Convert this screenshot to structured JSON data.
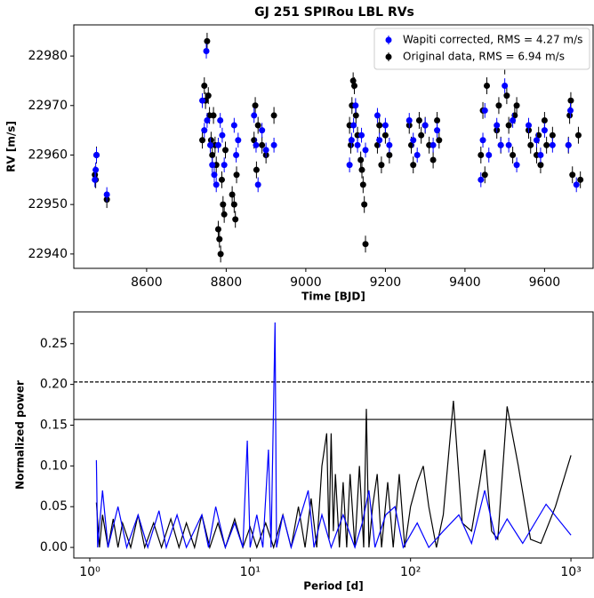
{
  "chart_data": [
    {
      "type": "scatter",
      "title": "GJ 251 SPIRou LBL RVs",
      "xlabel": "Time [BJD]",
      "ylabel": "RV [m/s]",
      "xlim": [
        8417,
        9722
      ],
      "ylim": [
        22937.1,
        22986.3
      ],
      "xticks": [
        8600,
        8800,
        9000,
        9200,
        9400,
        9600
      ],
      "yticks": [
        22940,
        22950,
        22960,
        22970,
        22980
      ],
      "legend": "upper right",
      "series": [
        {
          "name": "Wapiti corrected, RMS = 4.27 m/s",
          "color": "#0000ff",
          "yerr": 1.5,
          "x": [
            8470,
            8472,
            8474,
            8500,
            8740,
            8745,
            8750,
            8752,
            8760,
            8765,
            8770,
            8775,
            8780,
            8785,
            8790,
            8795,
            8820,
            8825,
            8830,
            8870,
            8875,
            8880,
            8890,
            8900,
            8920,
            9110,
            9115,
            9120,
            9125,
            9130,
            9140,
            9150,
            9180,
            9185,
            9200,
            9210,
            9260,
            9270,
            9280,
            9300,
            9320,
            9330,
            9440,
            9445,
            9450,
            9460,
            9480,
            9490,
            9500,
            9510,
            9520,
            9530,
            9560,
            9580,
            9590,
            9600,
            9620,
            9660,
            9665,
            9680
          ],
          "values": [
            22955,
            22957,
            22960,
            22952,
            22971,
            22965,
            22981,
            22967,
            22962,
            22958,
            22956,
            22954,
            22962,
            22967,
            22964,
            22958,
            22966,
            22960,
            22963,
            22968,
            22962,
            22954,
            22965,
            22961,
            22962,
            22958,
            22963,
            22966,
            22970,
            22962,
            22964,
            22961,
            22968,
            22963,
            22966,
            22962,
            22967,
            22963,
            22960,
            22966,
            22962,
            22965,
            22955,
            22963,
            22969,
            22960,
            22966,
            22962,
            22974,
            22962,
            22967,
            22958,
            22966,
            22963,
            22960,
            22965,
            22962,
            22962,
            22969,
            22954
          ]
        },
        {
          "name": "Original data, RMS = 6.94 m/s",
          "color": "#000000",
          "yerr": 1.7,
          "x": [
            8470,
            8472,
            8474,
            8500,
            8740,
            8745,
            8748,
            8752,
            8755,
            8758,
            8762,
            8765,
            8768,
            8772,
            8775,
            8780,
            8783,
            8786,
            8789,
            8792,
            8795,
            8798,
            8815,
            8820,
            8823,
            8826,
            8870,
            8873,
            8876,
            8880,
            8890,
            8900,
            8920,
            9110,
            9113,
            9116,
            9119,
            9122,
            9126,
            9130,
            9138,
            9141,
            9144,
            9147,
            9150,
            9180,
            9185,
            9190,
            9200,
            9210,
            9260,
            9265,
            9270,
            9285,
            9290,
            9300,
            9310,
            9320,
            9330,
            9335,
            9440,
            9445,
            9450,
            9455,
            9480,
            9485,
            9490,
            9500,
            9505,
            9510,
            9520,
            9525,
            9530,
            9560,
            9565,
            9580,
            9585,
            9590,
            9600,
            9605,
            9620,
            9660,
            9663,
            9666,
            9670,
            9685,
            9690
          ],
          "values": [
            22956,
            22955,
            22960,
            22951,
            22963,
            22974,
            22971,
            22983,
            22972,
            22968,
            22963,
            22960,
            22968,
            22962,
            22958,
            22945,
            22943,
            22940,
            22955,
            22950,
            22948,
            22961,
            22952,
            22950,
            22947,
            22956,
            22963,
            22970,
            22957,
            22966,
            22962,
            22960,
            22968,
            22966,
            22962,
            22970,
            22975,
            22974,
            22968,
            22964,
            22959,
            22957,
            22954,
            22950,
            22942,
            22962,
            22966,
            22958,
            22964,
            22960,
            22966,
            22962,
            22958,
            22967,
            22964,
            22966,
            22962,
            22959,
            22967,
            22963,
            22960,
            22969,
            22956,
            22974,
            22965,
            22970,
            22962,
            22978,
            22972,
            22966,
            22960,
            22968,
            22970,
            22965,
            22962,
            22960,
            22964,
            22958,
            22967,
            22962,
            22964,
            22962,
            22968,
            22971,
            22956,
            22964,
            22955
          ]
        }
      ]
    },
    {
      "type": "line",
      "xlabel": "Period [d]",
      "ylabel": "Normalized power",
      "xscale": "log",
      "xlim": [
        0.795,
        1375
      ],
      "ylim": [
        -0.013,
        0.289
      ],
      "xticks": [
        {
          "value": 1,
          "label": "10⁰"
        },
        {
          "value": 10,
          "label": "10¹"
        },
        {
          "value": 100,
          "label": "10²"
        },
        {
          "value": 1000,
          "label": "10³"
        }
      ],
      "yticks": [
        {
          "value": 0,
          "label": "0.00"
        },
        0.05,
        {
          "value": 0.1,
          "label": "0.10"
        },
        0.15,
        {
          "value": 0.2,
          "label": "0.20"
        },
        0.25
      ],
      "hlines": [
        {
          "value": 0.203,
          "style": "dashed"
        },
        {
          "value": 0.157,
          "style": "solid"
        }
      ],
      "series": [
        {
          "color": "#000000",
          "x": [
            1.1,
            1.15,
            1.2,
            1.3,
            1.4,
            1.5,
            1.6,
            1.8,
            2,
            2.2,
            2.5,
            2.8,
            3.2,
            3.6,
            4,
            4.5,
            5,
            5.6,
            6.3,
            7,
            8,
            9,
            10,
            11,
            12.5,
            14,
            16,
            18,
            20,
            22,
            24,
            26,
            28,
            30,
            31,
            32,
            33,
            34,
            36,
            38,
            40,
            42,
            45,
            48,
            51,
            53,
            55,
            58,
            62,
            66,
            72,
            78,
            85,
            92,
            100,
            110,
            120,
            130,
            145,
            160,
            185,
            210,
            240,
            270,
            290,
            320,
            350,
            400,
            470,
            560,
            650,
            800,
            1000
          ],
          "values": [
            0.055,
            0,
            0.04,
            0,
            0.035,
            0,
            0.03,
            0,
            0.04,
            0,
            0.03,
            0,
            0.035,
            0,
            0.03,
            0,
            0.04,
            0,
            0.03,
            0,
            0.035,
            0,
            0.025,
            0,
            0.03,
            0,
            0.04,
            0,
            0.05,
            0,
            0.06,
            0,
            0.1,
            0.14,
            0.01,
            0.14,
            0.02,
            0.09,
            0,
            0.08,
            0,
            0.09,
            0,
            0.1,
            0,
            0.17,
            0,
            0.05,
            0.09,
            0,
            0.08,
            0,
            0.09,
            0,
            0.05,
            0.08,
            0.1,
            0.05,
            0,
            0.04,
            0.18,
            0.03,
            0.02,
            0.08,
            0.12,
            0.02,
            0.01,
            0.173,
            0.1,
            0.01,
            0.005,
            0.05,
            0.113
          ]
        },
        {
          "color": "#0000ff",
          "x": [
            1.1,
            1.12,
            1.2,
            1.3,
            1.5,
            1.7,
            2,
            2.3,
            2.7,
            3,
            3.5,
            4,
            5,
            5.5,
            6.1,
            7,
            8,
            9,
            9.6,
            10,
            11,
            12,
            13,
            13.5,
            14.3,
            14.6,
            16,
            18,
            20,
            23,
            25,
            28,
            32,
            38,
            45,
            50,
            55,
            60,
            70,
            80,
            90,
            110,
            130,
            160,
            200,
            240,
            290,
            340,
            400,
            500,
            700,
            1000
          ],
          "values": [
            0.107,
            0,
            0.07,
            0,
            0.05,
            0,
            0.04,
            0,
            0.045,
            0,
            0.04,
            0,
            0.04,
            0,
            0.05,
            0,
            0.03,
            0,
            0.131,
            0,
            0.04,
            0,
            0.12,
            0,
            0.276,
            0,
            0.04,
            0,
            0.03,
            0.07,
            0,
            0.04,
            0,
            0.04,
            0,
            0.03,
            0.07,
            0,
            0.04,
            0.05,
            0,
            0.03,
            0,
            0.02,
            0.04,
            0.005,
            0.07,
            0.01,
            0.035,
            0.005,
            0.053,
            0.015
          ]
        }
      ]
    }
  ]
}
